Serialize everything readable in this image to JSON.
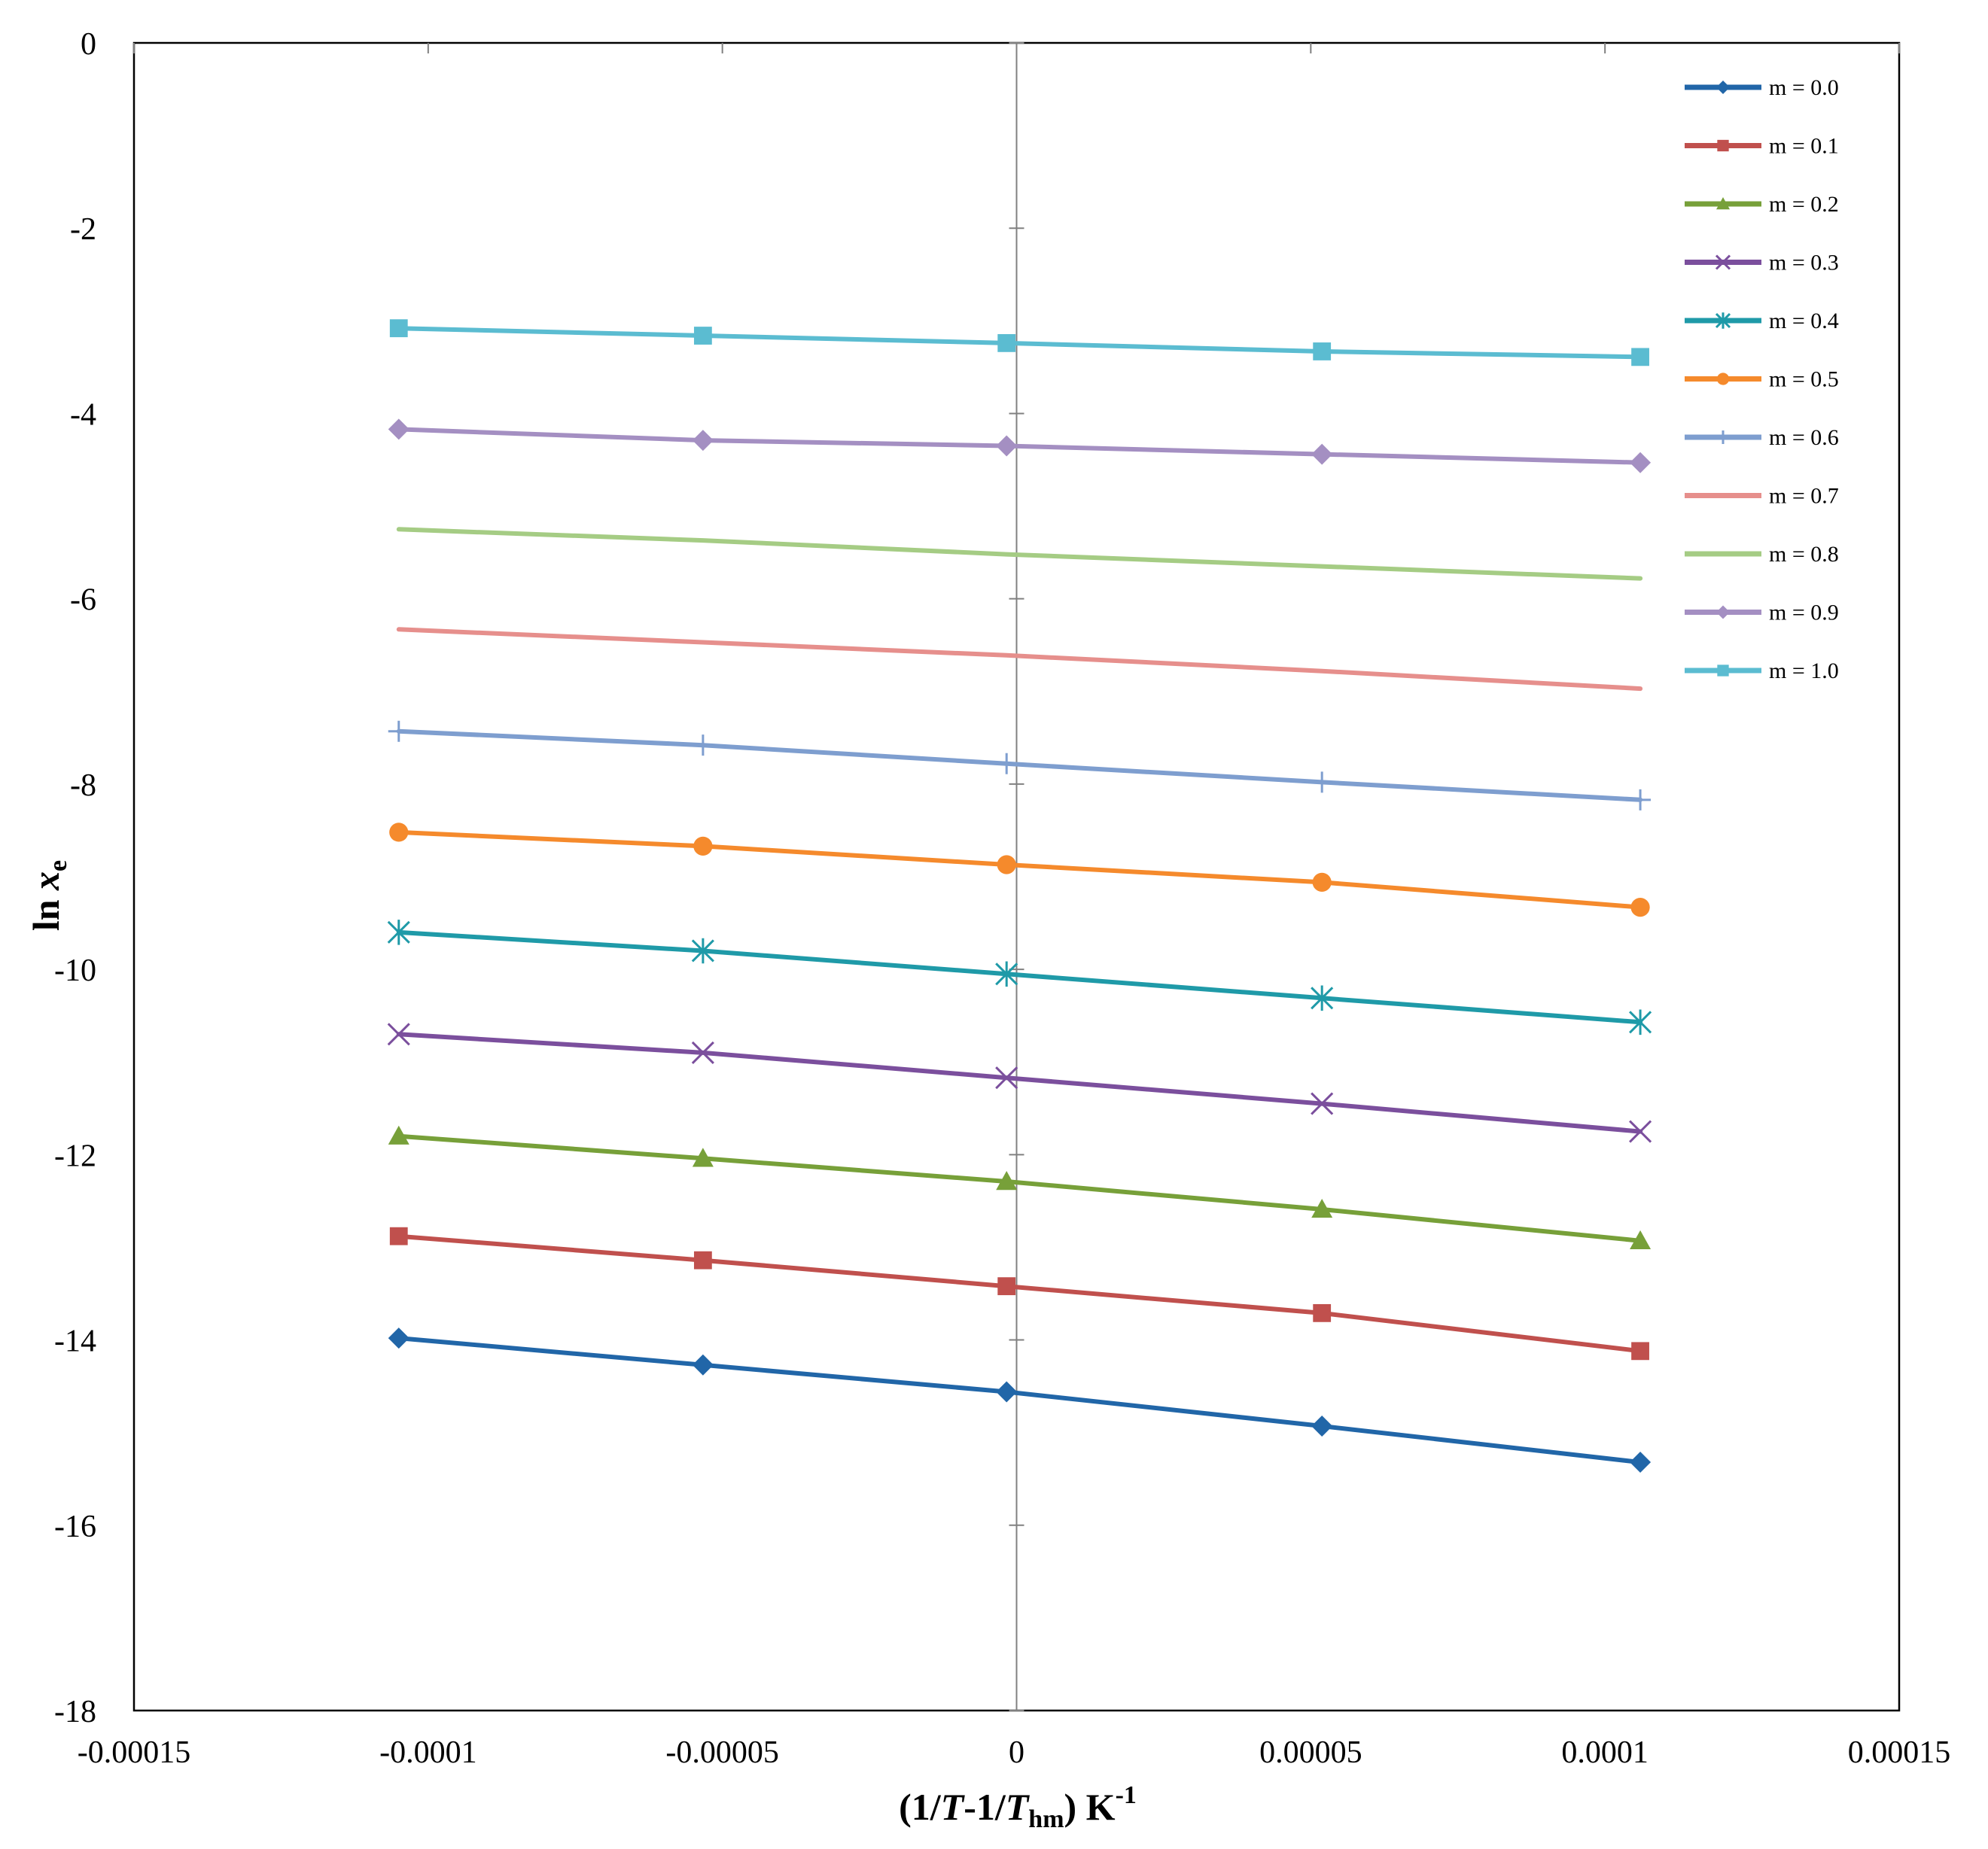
{
  "chart_data": {
    "type": "line",
    "title": "",
    "xlabel": {
      "pre": "(1/",
      "T1": "T",
      "mid": "-1/",
      "T2": "T",
      "sub": "hm",
      "post": ") K",
      "sup": "-1"
    },
    "ylabel": {
      "pre": "ln ",
      "x": "x",
      "sub": "e"
    },
    "xlim": [
      -0.00015,
      0.00015
    ],
    "ylim": [
      -18,
      0
    ],
    "xticks": [
      -0.00015,
      -0.0001,
      -5e-05,
      0,
      5e-05,
      0.0001,
      0.00015
    ],
    "xtick_labels": [
      "-0.00015",
      "-0.0001",
      "-0.00005",
      "0",
      "0.00005",
      "0.0001",
      "0.00015"
    ],
    "yticks": [
      0,
      -2,
      -4,
      -6,
      -8,
      -10,
      -12,
      -14,
      -16,
      -18
    ],
    "ytick_labels": [
      "0",
      "-2",
      "-4",
      "-6",
      "-8",
      "-10",
      "-12",
      "-14",
      "-16",
      "-18"
    ],
    "grid": false,
    "legend_position": "top-right",
    "x": [
      -0.000105,
      -5.33e-05,
      -1.7e-06,
      5.19e-05,
      0.000106
    ],
    "series": [
      {
        "name": "m = 0.0",
        "color": "#2166a8",
        "marker": "diamond",
        "show_markers": true,
        "values": [
          -13.98,
          -14.27,
          -14.56,
          -14.93,
          -15.32
        ]
      },
      {
        "name": "m = 0.1",
        "color": "#c0504d",
        "marker": "square",
        "show_markers": true,
        "values": [
          -12.88,
          -13.14,
          -13.42,
          -13.71,
          -14.12
        ]
      },
      {
        "name": "m = 0.2",
        "color": "#77a039",
        "marker": "triangle",
        "show_markers": true,
        "values": [
          -11.8,
          -12.04,
          -12.29,
          -12.59,
          -12.93
        ]
      },
      {
        "name": "m = 0.3",
        "color": "#7b4f9d",
        "marker": "x",
        "show_markers": true,
        "values": [
          -10.7,
          -10.9,
          -11.17,
          -11.45,
          -11.75
        ]
      },
      {
        "name": "m = 0.4",
        "color": "#1f9aa8",
        "marker": "asterisk",
        "show_markers": true,
        "values": [
          -9.6,
          -9.8,
          -10.05,
          -10.31,
          -10.57
        ]
      },
      {
        "name": "m = 0.5",
        "color": "#f58a2c",
        "marker": "circle",
        "show_markers": true,
        "values": [
          -8.52,
          -8.67,
          -8.87,
          -9.06,
          -9.33
        ]
      },
      {
        "name": "m = 0.6",
        "color": "#7e9ecf",
        "marker": "plus",
        "show_markers": true,
        "values": [
          -7.43,
          -7.58,
          -7.78,
          -7.98,
          -8.17
        ]
      },
      {
        "name": "m = 0.7",
        "color": "#e68f8c",
        "marker": "none",
        "show_markers": false,
        "values": [
          -6.33,
          -6.47,
          -6.61,
          -6.78,
          -6.97
        ]
      },
      {
        "name": "m = 0.8",
        "color": "#a5cc84",
        "marker": "none",
        "show_markers": false,
        "values": [
          -5.25,
          -5.37,
          -5.52,
          -5.65,
          -5.78
        ]
      },
      {
        "name": "m = 0.9",
        "color": "#a48fc2",
        "marker": "diamond",
        "show_markers": true,
        "values": [
          -4.17,
          -4.29,
          -4.35,
          -4.44,
          -4.53
        ]
      },
      {
        "name": "m = 1.0",
        "color": "#5bbcd1",
        "marker": "square",
        "show_markers": true,
        "values": [
          -3.08,
          -3.16,
          -3.24,
          -3.33,
          -3.39
        ]
      }
    ]
  }
}
